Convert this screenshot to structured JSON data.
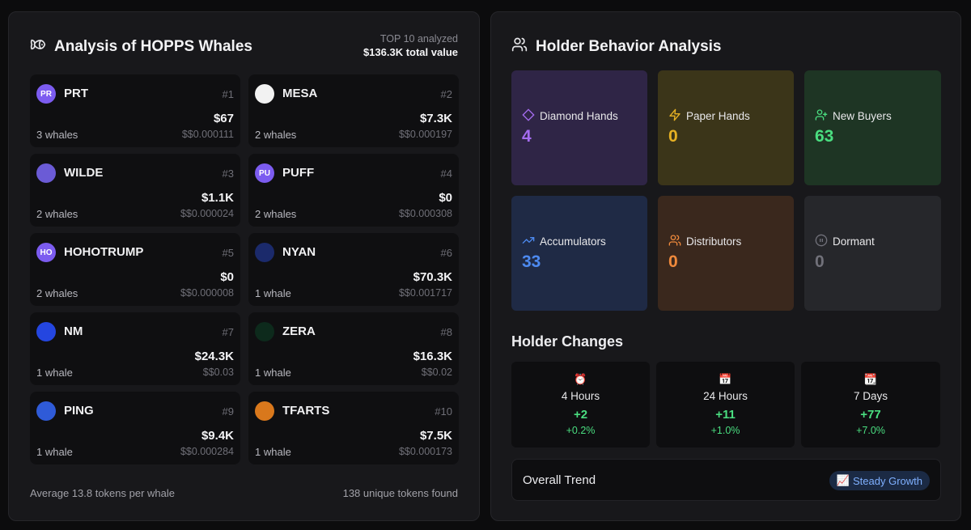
{
  "whales": {
    "title": "Analysis of HOPPS Whales",
    "analyzed_label": "TOP 10 analyzed",
    "total_value": "$136.3K total value",
    "tokens": [
      {
        "name": "PRT",
        "rank": "#1",
        "value": "$67",
        "count": "3 whales",
        "price": "$$0.000111",
        "avatar": "PR",
        "avatar_color": "#7c5cf0"
      },
      {
        "name": "MESA",
        "rank": "#2",
        "value": "$7.3K",
        "count": "2 whales",
        "price": "$$0.000197",
        "avatar": "",
        "avatar_color": "#f2f2f2"
      },
      {
        "name": "WILDE",
        "rank": "#3",
        "value": "$1.1K",
        "count": "2 whales",
        "price": "$$0.000024",
        "avatar": "",
        "avatar_color": "#6b5bd6"
      },
      {
        "name": "PUFF",
        "rank": "#4",
        "value": "$0",
        "count": "2 whales",
        "price": "$$0.000308",
        "avatar": "PU",
        "avatar_color": "#7c5cf0"
      },
      {
        "name": "HOHOTRUMP",
        "rank": "#5",
        "value": "$0",
        "count": "2 whales",
        "price": "$$0.000008",
        "avatar": "HO",
        "avatar_color": "#7c5cf0"
      },
      {
        "name": "NYAN",
        "rank": "#6",
        "value": "$70.3K",
        "count": "1 whale",
        "price": "$$0.001717",
        "avatar": "",
        "avatar_color": "#1b2a6b"
      },
      {
        "name": "NM",
        "rank": "#7",
        "value": "$24.3K",
        "count": "1 whale",
        "price": "$$0.03",
        "avatar": "",
        "avatar_color": "#2446e0"
      },
      {
        "name": "ZERA",
        "rank": "#8",
        "value": "$16.3K",
        "count": "1 whale",
        "price": "$$0.02",
        "avatar": "",
        "avatar_color": "#0d2a1c"
      },
      {
        "name": "PING",
        "rank": "#9",
        "value": "$9.4K",
        "count": "1 whale",
        "price": "$$0.000284",
        "avatar": "",
        "avatar_color": "#2f5bd8"
      },
      {
        "name": "TFARTS",
        "rank": "#10",
        "value": "$7.5K",
        "count": "1 whale",
        "price": "$$0.000173",
        "avatar": "",
        "avatar_color": "#d9781c"
      }
    ],
    "footer_avg": "Average 13.8 tokens per whale",
    "footer_unique": "138 unique tokens found"
  },
  "behavior": {
    "title": "Holder Behavior Analysis",
    "cards": [
      {
        "label": "Diamond Hands",
        "value": "4",
        "icon": "diamond-icon",
        "bg": "#2f2546",
        "color": "#a56cf0"
      },
      {
        "label": "Paper Hands",
        "value": "0",
        "icon": "lightning-icon",
        "bg": "#3b3519",
        "color": "#e6b123"
      },
      {
        "label": "New Buyers",
        "value": "63",
        "icon": "user-plus-icon",
        "bg": "#1e3524",
        "color": "#4ade80"
      },
      {
        "label": "Accumulators",
        "value": "33",
        "icon": "trending-up-icon",
        "bg": "#1f2a45",
        "color": "#4d8af0"
      },
      {
        "label": "Distributors",
        "value": "0",
        "icon": "users-icon",
        "bg": "#3a281d",
        "color": "#f08a3c"
      },
      {
        "label": "Dormant",
        "value": "0",
        "icon": "pause-icon",
        "bg": "#26272b",
        "color": "#71717a"
      }
    ]
  },
  "holder_changes": {
    "title": "Holder Changes",
    "periods": [
      {
        "icon": "⏰",
        "label": "4 Hours",
        "delta": "+2",
        "pct": "+0.2%"
      },
      {
        "icon": "📅",
        "label": "24 Hours",
        "delta": "+11",
        "pct": "+1.0%"
      },
      {
        "icon": "📆",
        "label": "7 Days",
        "delta": "+77",
        "pct": "+7.0%"
      }
    ]
  },
  "trend": {
    "label": "Overall Trend",
    "badge_icon": "📈",
    "badge": "Steady Growth"
  }
}
